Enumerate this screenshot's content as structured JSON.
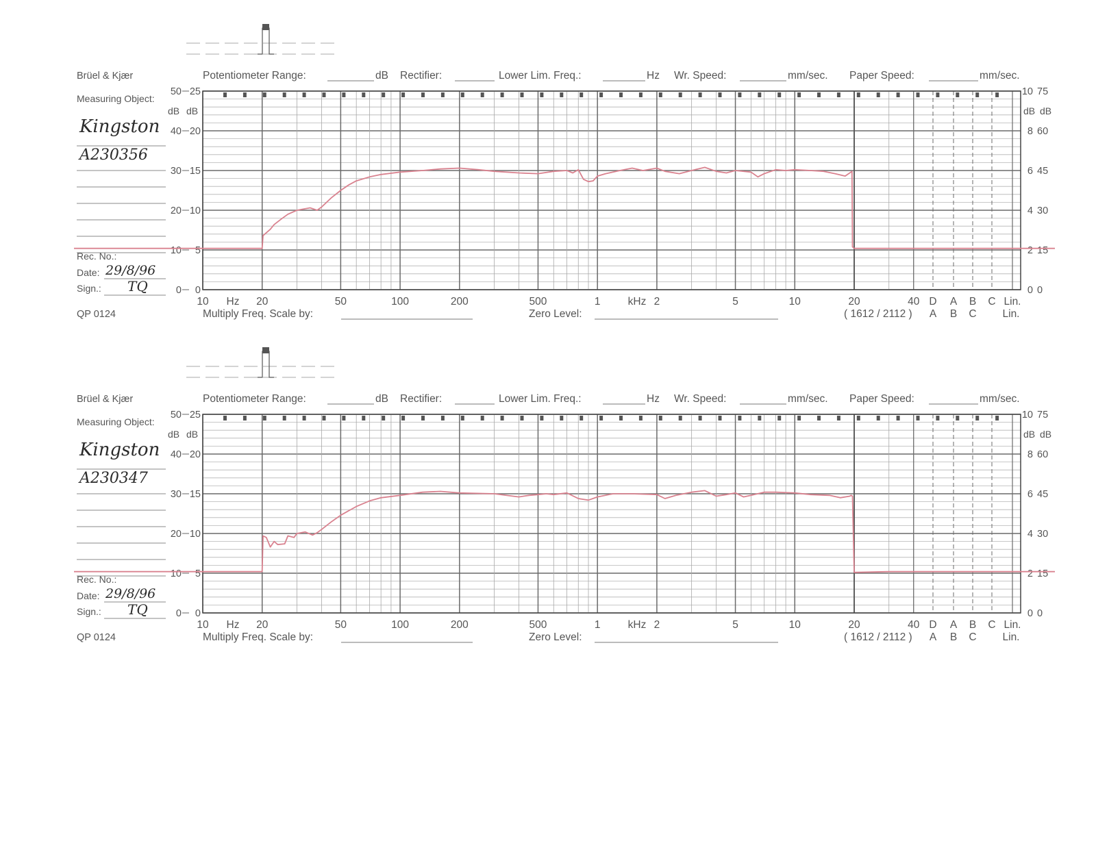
{
  "charts_common": {
    "brand": "Brüel & Kjær",
    "measuring_object_label": "Measuring Object:",
    "rec_no_label": "Rec. No.:",
    "date_label": "Date:",
    "sign_label": "Sign.:",
    "form_code": "QP 0124",
    "header": {
      "potentiometer": "Potentiometer Range:",
      "db": "dB",
      "rectifier": "Rectifier:",
      "lower_lim": "Lower Lim. Freq.:",
      "hz": "Hz",
      "wr_speed": "Wr. Speed:",
      "mm_sec": "mm/sec.",
      "paper_speed": "Paper Speed:"
    },
    "multiply_label": "Multiply Freq. Scale by:",
    "zero_level_label": "Zero Level:",
    "model_code": "( 1612 / 2112 )",
    "x_ticks": [
      {
        "f": 10,
        "label": "10"
      },
      {
        "f": 20,
        "label": "20"
      },
      {
        "f": 50,
        "label": "50"
      },
      {
        "f": 100,
        "label": "100"
      },
      {
        "f": 200,
        "label": "200"
      },
      {
        "f": 500,
        "label": "500"
      },
      {
        "f": 1000,
        "label": "1"
      },
      {
        "f": 2000,
        "label": "2"
      },
      {
        "f": 5000,
        "label": "5"
      },
      {
        "f": 10000,
        "label": "10"
      },
      {
        "f": 20000,
        "label": "20"
      },
      {
        "f": 40000,
        "label": "40"
      }
    ],
    "hz_unit": "Hz",
    "khz_unit": "kHz",
    "weightings_top": [
      "D",
      "A",
      "B",
      "C",
      "Lin."
    ],
    "weightings_bottom": [
      "A",
      "B",
      "C",
      "Lin."
    ],
    "left_scale_50": [
      "50",
      "40",
      "30",
      "20",
      "10",
      "0"
    ],
    "left_scale_25": [
      "25",
      "20",
      "15",
      "10",
      "5",
      "0"
    ],
    "right_scale_10": [
      "10",
      "8",
      "6",
      "4",
      "2",
      "0"
    ],
    "right_scale_75": [
      "75",
      "60",
      "45",
      "30",
      "15",
      "0"
    ],
    "db_unit": "dB",
    "trace_color": "#d9828f"
  },
  "chart_data": [
    {
      "type": "line",
      "title": "",
      "measuring_object": "Kingston",
      "object_id": "A230356",
      "date": "29/8/96",
      "sign": "TQ",
      "xlabel": "Hz",
      "ylabel": "dB",
      "x_scale": "log",
      "xlim": [
        10,
        40000
      ],
      "ylim": [
        0,
        25
      ],
      "series": [
        {
          "x": [
            10,
            20,
            20.2,
            22,
            23,
            25,
            27,
            30,
            35,
            38,
            40,
            45,
            50,
            55,
            60,
            70,
            80,
            100,
            130,
            160,
            200,
            250,
            300,
            400,
            500,
            600,
            700,
            750,
            800,
            850,
            900,
            950,
            1000,
            1100,
            1300,
            1500,
            1700,
            2000,
            2200,
            2600,
            3000,
            3500,
            4000,
            4500,
            5000,
            6000,
            6500,
            7000,
            8000,
            9000,
            10000,
            12000,
            14000,
            16000,
            18000,
            19500,
            19600,
            20000,
            25000,
            30000,
            40000,
            44000
          ],
          "y": [
            5.2,
            5.2,
            6.8,
            7.6,
            8.2,
            8.9,
            9.5,
            10.0,
            10.3,
            10.0,
            10.4,
            11.6,
            12.5,
            13.2,
            13.7,
            14.2,
            14.5,
            14.8,
            15.0,
            15.2,
            15.3,
            15.1,
            14.9,
            14.7,
            14.6,
            14.9,
            15.0,
            14.7,
            15.1,
            13.9,
            13.6,
            13.7,
            14.3,
            14.6,
            15.0,
            15.3,
            15.0,
            15.3,
            14.9,
            14.6,
            15.0,
            15.4,
            14.9,
            14.7,
            15.0,
            14.8,
            14.2,
            14.6,
            15.1,
            15.0,
            15.1,
            15.0,
            14.9,
            14.6,
            14.3,
            14.9,
            5.4,
            5.2,
            5.2,
            5.2,
            5.2,
            5.2
          ]
        }
      ]
    },
    {
      "type": "line",
      "title": "",
      "measuring_object": "Kingston",
      "object_id": "A230347",
      "date": "29/8/96",
      "sign": "TQ",
      "xlabel": "Hz",
      "ylabel": "dB",
      "x_scale": "log",
      "xlim": [
        10,
        40000
      ],
      "ylim": [
        0,
        25
      ],
      "series": [
        {
          "x": [
            10,
            20,
            20.2,
            21,
            22,
            23,
            24,
            26,
            27,
            29,
            30,
            33,
            36,
            38,
            40,
            45,
            50,
            60,
            70,
            80,
            100,
            130,
            160,
            200,
            300,
            400,
            450,
            500,
            550,
            600,
            700,
            800,
            900,
            1000,
            1200,
            1500,
            2000,
            2200,
            2500,
            3000,
            3500,
            4000,
            4500,
            5000,
            5500,
            6000,
            7000,
            8000,
            10000,
            12000,
            15000,
            17000,
            19000,
            19300,
            19600,
            20000,
            30000,
            44000
          ],
          "y": [
            5.2,
            5.2,
            9.7,
            9.5,
            8.3,
            9.0,
            8.6,
            8.7,
            9.7,
            9.5,
            10.0,
            10.2,
            9.8,
            10.1,
            10.5,
            11.5,
            12.3,
            13.4,
            14.1,
            14.5,
            14.8,
            15.2,
            15.3,
            15.1,
            15.0,
            14.6,
            14.8,
            14.9,
            15.0,
            14.9,
            15.1,
            14.4,
            14.2,
            14.6,
            15.0,
            15.0,
            14.9,
            14.4,
            14.8,
            15.2,
            15.4,
            14.7,
            14.9,
            15.1,
            14.6,
            14.8,
            15.2,
            15.2,
            15.1,
            14.9,
            14.8,
            14.5,
            14.7,
            14.8,
            14.7,
            5.1,
            5.2,
            5.2
          ]
        }
      ]
    }
  ]
}
